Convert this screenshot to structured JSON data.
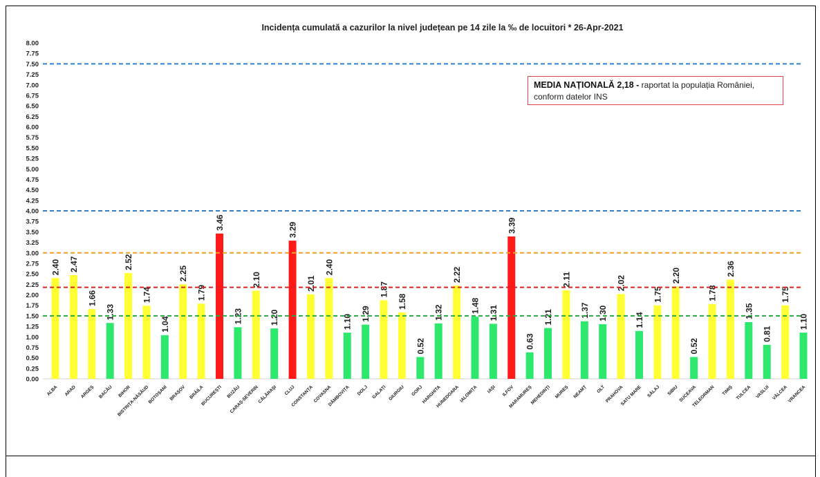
{
  "chart_data": {
    "type": "bar",
    "title": "Incidența cumulată a cazurilor la nivel județean pe 14 zile la ‰ de locuitori *   26-Apr-2021",
    "xlabel": "",
    "ylabel": "",
    "ylim": [
      0,
      8
    ],
    "ytick_step": 0.25,
    "grid": false,
    "categories": [
      "ALBA",
      "ARAD",
      "ARGEȘ",
      "BACĂU",
      "BIHOR",
      "BISTRIȚA-NĂSĂUD",
      "BOTOȘANI",
      "BRAȘOV",
      "BRĂILA",
      "BUCUREȘTI",
      "BUZĂU",
      "CARAȘ-SEVERIN",
      "CĂLĂRAȘI",
      "CLUJ",
      "CONSTANȚA",
      "COVASNA",
      "DÂMBOVIȚA",
      "DOLJ",
      "GALAȚI",
      "GIURGIU",
      "GORJ",
      "HARGHITA",
      "HUNEDOARA",
      "IALOMIȚA",
      "IAȘI",
      "ILFOV",
      "MARAMUREȘ",
      "MEHEDINȚI",
      "MUREȘ",
      "NEAMȚ",
      "OLT",
      "PRAHOVA",
      "SATU MARE",
      "SĂLAJ",
      "SIBIU",
      "SUCEAVA",
      "TELEORMAN",
      "TIMIȘ",
      "TULCEA",
      "VASLUI",
      "VÂLCEA",
      "VRANCEA"
    ],
    "values": [
      2.4,
      2.47,
      1.66,
      1.33,
      2.52,
      1.74,
      1.04,
      2.25,
      1.79,
      3.46,
      1.23,
      2.1,
      1.2,
      3.29,
      2.01,
      2.4,
      1.1,
      1.29,
      1.87,
      1.58,
      0.52,
      1.32,
      2.22,
      1.48,
      1.31,
      3.39,
      0.63,
      1.21,
      2.11,
      1.37,
      1.3,
      2.02,
      1.14,
      1.75,
      2.2,
      0.52,
      1.78,
      2.36,
      1.35,
      0.81,
      1.75,
      1.1
    ],
    "bar_colors": {
      "low": "#2ee86e",
      "medium": "#ffff33",
      "high": "#ff1a1a"
    },
    "color_thresholds": [
      1.5,
      3.0
    ],
    "reference_lines": [
      {
        "value": 7.5,
        "color": "#2f7fc8",
        "style": "dashed"
      },
      {
        "value": 4.0,
        "color": "#2f7fc8",
        "style": "dashed"
      },
      {
        "value": 3.0,
        "color": "#f0a020",
        "style": "dashed"
      },
      {
        "value": 2.18,
        "color": "#e02020",
        "style": "dashed"
      },
      {
        "value": 1.5,
        "color": "#22aa44",
        "style": "dashed"
      }
    ],
    "annotation": {
      "bold": "MEDIA NAȚIONALĂ  2,18 -",
      "text": " raportat la populația României, conform datelor INS"
    }
  }
}
